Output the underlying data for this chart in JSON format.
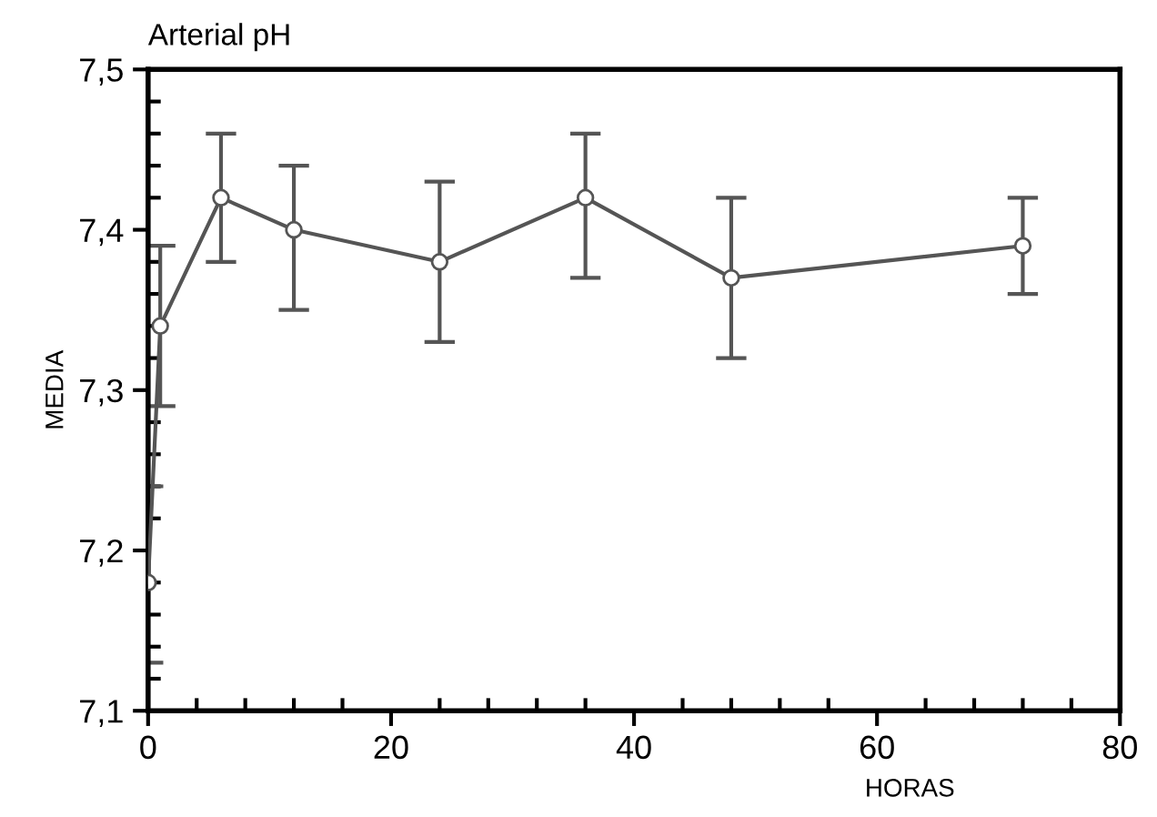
{
  "chart_data": {
    "type": "line",
    "title": "Arterial pH",
    "xlabel": "HORAS",
    "ylabel": "MEDIA",
    "x": [
      0,
      1,
      6,
      12,
      24,
      36,
      48,
      72
    ],
    "series": [
      {
        "color": "#555555",
        "values": [
          7.18,
          7.34,
          7.42,
          7.4,
          7.38,
          7.42,
          7.37,
          7.39
        ],
        "errors": [
          [
            7.13,
            7.24
          ],
          [
            7.29,
            7.39
          ],
          [
            7.38,
            7.46
          ],
          [
            7.35,
            7.44
          ],
          [
            7.33,
            7.43
          ],
          [
            7.37,
            7.46
          ],
          [
            7.32,
            7.42
          ],
          [
            7.36,
            7.42
          ]
        ]
      }
    ],
    "marker": "circle",
    "line_style": "solid",
    "grid": false,
    "legend": false,
    "xlim": [
      0,
      80
    ],
    "ylim": [
      7.1,
      7.5
    ],
    "xticks": [
      0,
      20,
      40,
      60,
      80,
      {
        "value": 4,
        "label": null
      },
      {
        "value": 8,
        "label": null
      },
      {
        "value": 12,
        "label": null
      },
      {
        "value": 16,
        "label": null
      },
      {
        "value": 24,
        "label": null
      },
      {
        "value": 28,
        "label": null
      },
      {
        "value": 32,
        "label": null
      },
      {
        "value": 36,
        "label": null
      },
      {
        "value": 44,
        "label": null
      },
      {
        "value": 48,
        "label": null
      },
      {
        "value": 52,
        "label": null
      },
      {
        "value": 56,
        "label": null
      },
      {
        "value": 64,
        "label": null
      },
      {
        "value": 68,
        "label": null
      },
      {
        "value": 72,
        "label": null
      },
      {
        "value": 76,
        "label": null
      }
    ],
    "yticks": [
      {
        "value": 7.1,
        "label": "7,1"
      },
      {
        "value": 7.2,
        "label": "7,2"
      },
      {
        "value": 7.3,
        "label": "7,3"
      },
      {
        "value": 7.4,
        "label": "7,4"
      },
      {
        "value": 7.5,
        "label": "7,5"
      },
      {
        "value": 7.12,
        "label": null
      },
      {
        "value": 7.14,
        "label": null
      },
      {
        "value": 7.16,
        "label": null
      },
      {
        "value": 7.18,
        "label": null
      },
      {
        "value": 7.22,
        "label": null
      },
      {
        "value": 7.24,
        "label": null
      },
      {
        "value": 7.26,
        "label": null
      },
      {
        "value": 7.28,
        "label": null
      },
      {
        "value": 7.32,
        "label": null
      },
      {
        "value": 7.34,
        "label": null
      },
      {
        "value": 7.36,
        "label": null
      },
      {
        "value": 7.38,
        "label": null
      },
      {
        "value": 7.42,
        "label": null
      },
      {
        "value": 7.44,
        "label": null
      },
      {
        "value": 7.46,
        "label": null
      },
      {
        "value": 7.48,
        "label": null
      }
    ]
  }
}
